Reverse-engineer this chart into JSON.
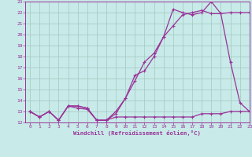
{
  "xlabel": "Windchill (Refroidissement éolien,°C)",
  "bg_color": "#c8eae8",
  "grid_color": "#a0c8c0",
  "line_color": "#993399",
  "xlim": [
    -0.5,
    23
  ],
  "ylim": [
    12,
    23
  ],
  "xticks": [
    0,
    1,
    2,
    3,
    4,
    5,
    6,
    7,
    8,
    9,
    10,
    11,
    12,
    13,
    14,
    15,
    16,
    17,
    18,
    19,
    20,
    21,
    22,
    23
  ],
  "yticks": [
    12,
    13,
    14,
    15,
    16,
    17,
    18,
    19,
    20,
    21,
    22,
    23
  ],
  "line1_y": [
    13.0,
    12.5,
    13.0,
    12.2,
    13.5,
    13.3,
    13.2,
    12.2,
    12.2,
    12.5,
    12.5,
    12.5,
    12.5,
    12.5,
    12.5,
    12.5,
    12.5,
    12.5,
    12.8,
    12.8,
    12.8,
    13.0,
    13.0,
    13.0
  ],
  "line2_y": [
    13.0,
    12.5,
    13.0,
    12.2,
    13.5,
    13.5,
    13.3,
    12.2,
    12.2,
    12.8,
    14.2,
    16.3,
    16.7,
    18.0,
    19.8,
    22.3,
    22.0,
    21.8,
    22.0,
    23.0,
    21.9,
    22.0,
    22.0,
    22.0
  ],
  "line3_y": [
    13.0,
    12.5,
    13.0,
    12.2,
    13.5,
    13.5,
    13.3,
    12.2,
    12.2,
    13.0,
    14.2,
    15.8,
    17.5,
    18.3,
    19.8,
    20.8,
    21.8,
    22.0,
    22.2,
    21.9,
    21.9,
    17.5,
    13.8,
    13.0
  ]
}
